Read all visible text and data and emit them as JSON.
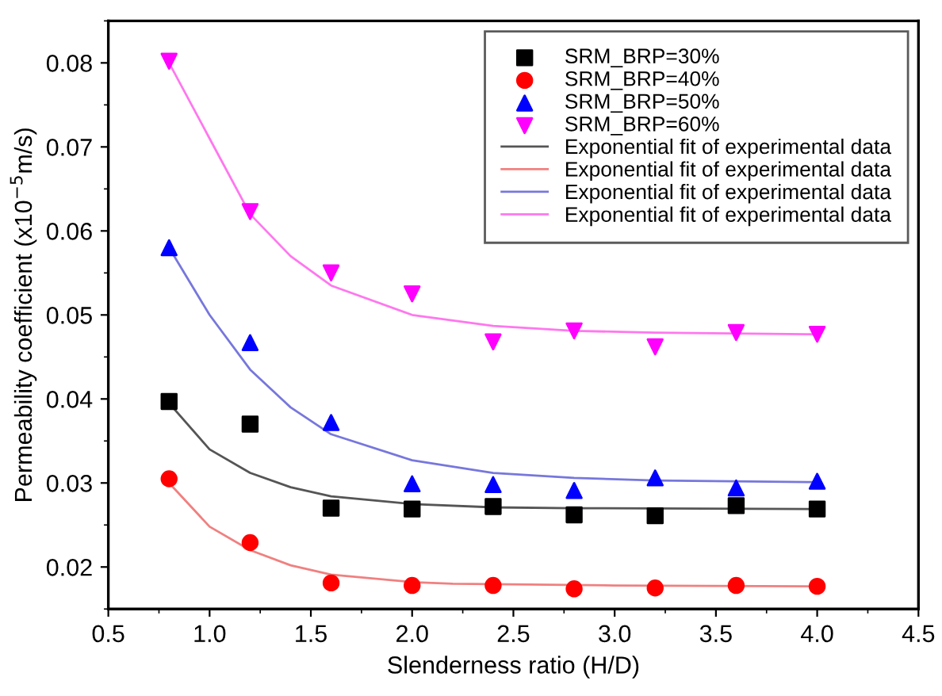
{
  "chart_data": {
    "type": "scatter",
    "xlabel": "Slenderness ratio (H/D)",
    "ylabel": "Permeability coefficient (x10$^{−5}$m/s)",
    "xlim": [
      0.5,
      4.5
    ],
    "xticks": [
      {
        "value": 0.5,
        "label": "0.5"
      },
      {
        "value": 1.0,
        "label": "1.0"
      },
      {
        "value": 1.5,
        "label": "1.5"
      },
      {
        "value": 2.0,
        "label": "2.0"
      },
      {
        "value": 2.5,
        "label": "2.5"
      },
      {
        "value": 3.0,
        "label": "3.0"
      },
      {
        "value": 3.5,
        "label": "3.5"
      },
      {
        "value": 4.0,
        "label": "4.0"
      },
      {
        "value": 4.5,
        "label": "4.5"
      }
    ],
    "ylim": [
      0.015,
      0.085
    ],
    "yticks": [
      {
        "value": 0.02,
        "label": "0.02"
      },
      {
        "value": 0.03,
        "label": "0.03"
      },
      {
        "value": 0.04,
        "label": "0.04"
      },
      {
        "value": 0.05,
        "label": "0.05"
      },
      {
        "value": 0.06,
        "label": "0.06"
      },
      {
        "value": 0.07,
        "label": "0.07"
      },
      {
        "value": 0.08,
        "label": "0.08"
      }
    ],
    "grid": false,
    "legend": "top right",
    "series": [
      {
        "name": "SRM_BRP=30%",
        "marker": "square",
        "color": "#000000",
        "x": [
          0.8,
          1.2,
          1.6,
          2.0,
          2.4,
          2.8,
          3.2,
          3.6,
          4.0
        ],
        "values": [
          0.0397,
          0.037,
          0.027,
          0.0269,
          0.0272,
          0.0262,
          0.0261,
          0.0273,
          0.0269
        ]
      },
      {
        "name": "SRM_BRP=40%",
        "marker": "circle",
        "color": "#ff0000",
        "x": [
          0.8,
          1.2,
          1.6,
          2.0,
          2.4,
          2.8,
          3.2,
          3.6,
          4.0
        ],
        "values": [
          0.0305,
          0.0229,
          0.0181,
          0.0178,
          0.0178,
          0.0174,
          0.0175,
          0.0178,
          0.0177
        ]
      },
      {
        "name": "SRM_BRP=50%",
        "marker": "triangle",
        "color": "#0000ff",
        "x": [
          0.8,
          1.2,
          1.6,
          2.0,
          2.4,
          2.8,
          3.2,
          3.6,
          4.0
        ],
        "values": [
          0.058,
          0.0467,
          0.0372,
          0.0299,
          0.0298,
          0.0291,
          0.0306,
          0.0294,
          0.0302
        ]
      },
      {
        "name": "SRM_BRP=60%",
        "marker": "triangle-down",
        "color": "#ff00ff",
        "x": [
          0.8,
          1.2,
          1.6,
          2.0,
          2.4,
          2.8,
          3.2,
          3.6,
          4.0
        ],
        "values": [
          0.0802,
          0.0623,
          0.055,
          0.0525,
          0.0468,
          0.0481,
          0.0462,
          0.0479,
          0.0477
        ]
      },
      {
        "name": "Exponential fit of experimental data",
        "type": "line",
        "line_style": "solid",
        "color": "#555555",
        "x": [
          0.8,
          1.0,
          1.2,
          1.4,
          1.6,
          2.0,
          2.4,
          2.8,
          4.0
        ],
        "values": [
          0.0395,
          0.034,
          0.0312,
          0.0295,
          0.0284,
          0.0275,
          0.0271,
          0.027,
          0.0269
        ]
      },
      {
        "name": "Exponential fit of experimental data",
        "type": "line",
        "line_style": "solid",
        "color": "#f08080",
        "x": [
          0.8,
          1.0,
          1.2,
          1.4,
          1.6,
          2.0,
          2.2,
          3.0,
          4.0
        ],
        "values": [
          0.03,
          0.0248,
          0.022,
          0.0202,
          0.0191,
          0.0182,
          0.018,
          0.0178,
          0.0177
        ]
      },
      {
        "name": "Exponential fit of experimental data",
        "type": "line",
        "line_style": "solid",
        "color": "#7777dd",
        "x": [
          0.8,
          1.0,
          1.2,
          1.4,
          1.6,
          2.0,
          2.4,
          2.8,
          3.2,
          4.0
        ],
        "values": [
          0.058,
          0.05,
          0.0435,
          0.039,
          0.0358,
          0.0327,
          0.0312,
          0.0306,
          0.0303,
          0.0301
        ]
      },
      {
        "name": "Exponential fit of experimental data",
        "type": "line",
        "line_style": "solid",
        "color": "#ff77ee",
        "x": [
          0.8,
          1.0,
          1.2,
          1.4,
          1.6,
          2.0,
          2.4,
          2.8,
          3.2,
          4.0
        ],
        "values": [
          0.08,
          0.071,
          0.062,
          0.057,
          0.0535,
          0.05,
          0.0487,
          0.0481,
          0.0479,
          0.0477
        ]
      }
    ]
  }
}
